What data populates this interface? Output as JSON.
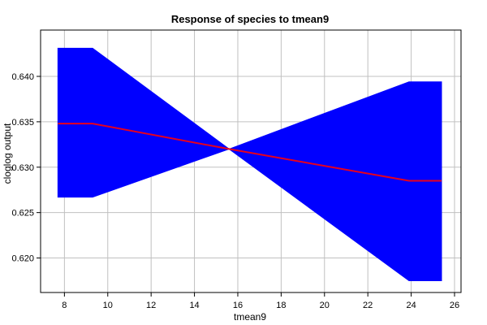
{
  "chart_data": {
    "type": "line",
    "title": "Response of species to tmean9",
    "xlabel": "tmean9",
    "ylabel": "cloglog output",
    "xlim": [
      6.9,
      26.3
    ],
    "ylim": [
      0.6162,
      0.6451
    ],
    "grid": true,
    "x_ticks": [
      8,
      10,
      12,
      14,
      16,
      18,
      20,
      22,
      24,
      26
    ],
    "y_ticks": [
      0.62,
      0.625,
      0.63,
      0.635,
      0.64
    ],
    "x_tick_labels": [
      "8",
      "10",
      "12",
      "14",
      "16",
      "18",
      "20",
      "22",
      "24",
      "26"
    ],
    "y_tick_labels": [
      "0.620",
      "0.625",
      "0.630",
      "0.635",
      "0.640"
    ],
    "series": [
      {
        "role": "mean",
        "color": "#e8001c",
        "x": [
          7.7,
          9.3,
          15.6,
          23.9,
          25.4
        ],
        "y": [
          0.6348,
          0.6348,
          0.632,
          0.6285,
          0.6285
        ]
      },
      {
        "role": "upper",
        "color": "#0000ff",
        "x": [
          7.7,
          9.3,
          15.6,
          23.9,
          25.4
        ],
        "y": [
          0.6431,
          0.6431,
          0.632,
          0.6394,
          0.6394
        ]
      },
      {
        "role": "lower",
        "color": "#0000ff",
        "x": [
          7.7,
          9.3,
          15.6,
          23.9,
          25.4
        ],
        "y": [
          0.6267,
          0.6267,
          0.632,
          0.6175,
          0.6175
        ]
      }
    ],
    "band_color": "#0000ff",
    "grid_color": "#c0c0c0"
  }
}
